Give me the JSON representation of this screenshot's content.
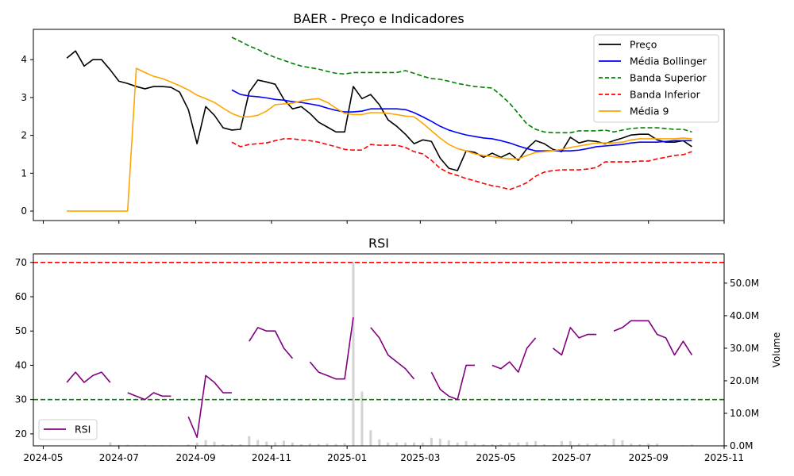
{
  "chart_data": [
    {
      "type": "line",
      "title": "BAER - Preço e Indicadores",
      "xlabel": "",
      "ylabel": "",
      "ylim": [
        -0.25,
        4.8
      ],
      "yticks": [
        0,
        1,
        2,
        3,
        4
      ],
      "ytick_labels": [
        "0",
        "1",
        "2",
        "3",
        "4"
      ],
      "x_start": "2024-05-20",
      "x_step_days": 7,
      "xlim": [
        "2024-04-23",
        "2025-11-01"
      ],
      "legend": {
        "placement": "top-right",
        "entries": [
          "Preço",
          "Média Bollinger",
          "Banda Superior",
          "Banda Inferior",
          "Média 9"
        ]
      },
      "series": [
        {
          "name": "Preço",
          "color": "#000000",
          "style": "solid",
          "values": [
            4.04,
            4.23,
            3.83,
            4.0,
            4.0,
            3.73,
            3.43,
            3.37,
            3.29,
            3.23,
            3.29,
            3.29,
            3.27,
            3.14,
            2.68,
            1.78,
            2.76,
            2.53,
            2.2,
            2.14,
            2.16,
            3.14,
            3.46,
            3.41,
            3.35,
            2.95,
            2.7,
            2.76,
            2.58,
            2.35,
            2.22,
            2.09,
            2.09,
            3.29,
            2.97,
            3.08,
            2.81,
            2.41,
            2.24,
            2.03,
            1.78,
            1.88,
            1.84,
            1.4,
            1.13,
            1.07,
            1.59,
            1.55,
            1.42,
            1.53,
            1.42,
            1.53,
            1.34,
            1.65,
            1.86,
            1.78,
            1.63,
            1.57,
            1.95,
            1.8,
            1.86,
            1.84,
            1.78,
            1.86,
            1.93,
            2.01,
            2.03,
            2.03,
            1.88,
            1.82,
            1.82,
            1.86,
            1.7
          ]
        },
        {
          "name": "Média Bollinger",
          "color": "#0000ff",
          "style": "solid",
          "values": [
            null,
            null,
            null,
            null,
            null,
            null,
            null,
            null,
            null,
            null,
            null,
            null,
            null,
            null,
            null,
            null,
            null,
            null,
            null,
            3.2,
            3.08,
            3.04,
            3.02,
            2.99,
            2.95,
            2.93,
            2.89,
            2.87,
            2.83,
            2.79,
            2.72,
            2.66,
            2.62,
            2.62,
            2.64,
            2.7,
            2.7,
            2.7,
            2.7,
            2.68,
            2.6,
            2.49,
            2.37,
            2.24,
            2.14,
            2.07,
            2.01,
            1.97,
            1.93,
            1.91,
            1.86,
            1.8,
            1.72,
            1.65,
            1.59,
            1.59,
            1.59,
            1.59,
            1.59,
            1.61,
            1.65,
            1.7,
            1.72,
            1.74,
            1.76,
            1.8,
            1.82,
            1.82,
            1.82,
            1.84,
            1.86,
            1.86,
            1.86
          ]
        },
        {
          "name": "Banda Superior",
          "color": "#008000",
          "style": "dashed",
          "values": [
            null,
            null,
            null,
            null,
            null,
            null,
            null,
            null,
            null,
            null,
            null,
            null,
            null,
            null,
            null,
            null,
            null,
            null,
            null,
            4.59,
            4.48,
            4.36,
            4.27,
            4.15,
            4.06,
            3.98,
            3.9,
            3.83,
            3.79,
            3.75,
            3.69,
            3.64,
            3.62,
            3.66,
            3.66,
            3.66,
            3.66,
            3.66,
            3.66,
            3.71,
            3.64,
            3.56,
            3.5,
            3.48,
            3.43,
            3.37,
            3.33,
            3.29,
            3.27,
            3.25,
            3.06,
            2.85,
            2.58,
            2.3,
            2.16,
            2.09,
            2.07,
            2.07,
            2.07,
            2.12,
            2.12,
            2.12,
            2.14,
            2.09,
            2.14,
            2.18,
            2.2,
            2.2,
            2.2,
            2.18,
            2.16,
            2.16,
            2.09
          ]
        },
        {
          "name": "Banda Inferior",
          "color": "#ff0000",
          "style": "dashed",
          "values": [
            null,
            null,
            null,
            null,
            null,
            null,
            null,
            null,
            null,
            null,
            null,
            null,
            null,
            null,
            null,
            null,
            null,
            null,
            null,
            1.82,
            1.7,
            1.76,
            1.78,
            1.8,
            1.86,
            1.91,
            1.91,
            1.88,
            1.86,
            1.82,
            1.76,
            1.7,
            1.63,
            1.61,
            1.61,
            1.76,
            1.74,
            1.74,
            1.74,
            1.68,
            1.57,
            1.51,
            1.34,
            1.13,
            1.01,
            0.94,
            0.86,
            0.8,
            0.73,
            0.67,
            0.63,
            0.57,
            0.65,
            0.75,
            0.92,
            1.03,
            1.07,
            1.09,
            1.09,
            1.09,
            1.11,
            1.15,
            1.3,
            1.3,
            1.3,
            1.3,
            1.32,
            1.32,
            1.38,
            1.42,
            1.47,
            1.49,
            1.57
          ]
        },
        {
          "name": "Média 9",
          "color": "#ffa500",
          "style": "solid",
          "values": [
            0,
            0,
            0,
            0,
            0,
            0,
            0,
            0,
            3.77,
            3.66,
            3.56,
            3.5,
            3.41,
            3.31,
            3.2,
            3.06,
            2.97,
            2.87,
            2.72,
            2.58,
            2.49,
            2.49,
            2.53,
            2.64,
            2.81,
            2.83,
            2.85,
            2.91,
            2.95,
            2.97,
            2.87,
            2.72,
            2.58,
            2.55,
            2.55,
            2.6,
            2.6,
            2.58,
            2.55,
            2.51,
            2.49,
            2.32,
            2.12,
            1.93,
            1.76,
            1.65,
            1.59,
            1.51,
            1.47,
            1.44,
            1.4,
            1.38,
            1.38,
            1.47,
            1.55,
            1.57,
            1.59,
            1.63,
            1.68,
            1.72,
            1.76,
            1.8,
            1.8,
            1.8,
            1.82,
            1.88,
            1.91,
            1.91,
            1.91,
            1.91,
            1.91,
            1.93,
            1.91
          ]
        }
      ]
    },
    {
      "type": "line",
      "title": "RSI",
      "xlabel": "",
      "ylabel": "",
      "ylim": [
        16.5,
        72.5
      ],
      "yticks": [
        20,
        30,
        40,
        50,
        60,
        70
      ],
      "ytick_labels": [
        "20",
        "30",
        "40",
        "50",
        "60",
        "70"
      ],
      "xticks": [
        "2024-05-01",
        "2024-07-01",
        "2024-09-01",
        "2024-11-01",
        "2025-01-01",
        "2025-03-01",
        "2025-05-01",
        "2025-07-01",
        "2025-09-01",
        "2025-11-01"
      ],
      "xtick_labels": [
        "2024-05",
        "2024-07",
        "2024-09",
        "2024-11",
        "2025-01",
        "2025-03",
        "2025-05",
        "2025-07",
        "2025-09",
        "2025-11"
      ],
      "reference_lines": [
        {
          "value": 70,
          "color": "#ff0000",
          "style": "dashed"
        },
        {
          "value": 30,
          "color": "#008000",
          "style": "dashed"
        }
      ],
      "legend": {
        "placement": "bottom-left",
        "entries": [
          "RSI"
        ]
      },
      "series": [
        {
          "name": "RSI",
          "color": "#800080",
          "style": "solid",
          "values": [
            35,
            38,
            35,
            37,
            38,
            35,
            null,
            32,
            31,
            30,
            32,
            31,
            31,
            null,
            25,
            19,
            37,
            35,
            32,
            32,
            null,
            47,
            51,
            50,
            50,
            45,
            42,
            null,
            41,
            38,
            37,
            36,
            36,
            54,
            null,
            51,
            48,
            43,
            41,
            39,
            36,
            null,
            38,
            33,
            31,
            30,
            40,
            40,
            null,
            40,
            39,
            41,
            38,
            45,
            48,
            null,
            45,
            43,
            51,
            48,
            49,
            49,
            null,
            50,
            51,
            53,
            53,
            53,
            49,
            48,
            43,
            47,
            43
          ]
        }
      ],
      "secondary_axis": {
        "label": "Volume",
        "ylim": [
          0,
          59
        ],
        "unit": "M",
        "yticks": [
          0,
          10,
          20,
          30,
          40,
          50
        ],
        "ytick_labels": [
          "0.0M",
          "10.0M",
          "20.0M",
          "30.0M",
          "40.0M",
          "50.0M"
        ],
        "series": {
          "name": "Volume",
          "type": "bar",
          "color": "#d3d3d3",
          "values": [
            0.1,
            0.1,
            0.1,
            0.1,
            0.1,
            1.1,
            0.3,
            0.3,
            0.2,
            0.3,
            0.2,
            0.2,
            0.2,
            0.1,
            0.4,
            1.0,
            1.8,
            1.3,
            0.5,
            0.5,
            0.5,
            3.0,
            1.8,
            1.3,
            1.1,
            1.6,
            1.0,
            0.5,
            0.7,
            0.6,
            0.7,
            0.6,
            0.8,
            56.6,
            16.7,
            4.8,
            2.0,
            1.0,
            1.0,
            1.0,
            1.0,
            1.0,
            2.5,
            2.2,
            1.7,
            1.0,
            1.5,
            0.7,
            0.5,
            0.5,
            0.5,
            1.0,
            1.0,
            1.2,
            1.5,
            0.5,
            0.2,
            1.5,
            1.5,
            0.7,
            0.7,
            0.7,
            0.5,
            2.2,
            1.7,
            0.7,
            0.5,
            0.7,
            0.7,
            0.0,
            0.0,
            0.2,
            0.4
          ]
        }
      }
    }
  ]
}
